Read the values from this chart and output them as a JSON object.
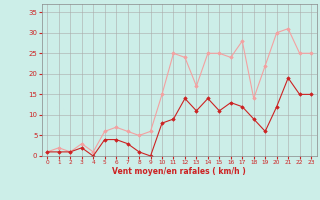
{
  "x": [
    0,
    1,
    2,
    3,
    4,
    5,
    6,
    7,
    8,
    9,
    10,
    11,
    12,
    13,
    14,
    15,
    16,
    17,
    18,
    19,
    20,
    21,
    22,
    23
  ],
  "y_rafales": [
    1,
    2,
    1,
    3,
    1,
    6,
    7,
    6,
    5,
    6,
    15,
    25,
    24,
    17,
    25,
    25,
    24,
    28,
    14,
    22,
    30,
    31,
    25,
    25
  ],
  "y_moyen": [
    1,
    1,
    1,
    2,
    0,
    4,
    4,
    3,
    1,
    0,
    8,
    9,
    14,
    11,
    14,
    11,
    13,
    12,
    9,
    6,
    12,
    19,
    15,
    15
  ],
  "color_rafales": "#f4a0a0",
  "color_moyen": "#cc2222",
  "bg_color": "#cceee8",
  "grid_color": "#aaaaaa",
  "xlabel": "Vent moyen/en rafales ( km/h )",
  "xlabel_color": "#cc2222",
  "tick_color": "#cc2222",
  "ylim": [
    0,
    37
  ],
  "yticks": [
    0,
    5,
    10,
    15,
    20,
    25,
    30,
    35
  ],
  "xlim": [
    -0.5,
    23.5
  ],
  "xticks": [
    0,
    1,
    2,
    3,
    4,
    5,
    6,
    7,
    8,
    9,
    10,
    11,
    12,
    13,
    14,
    15,
    16,
    17,
    18,
    19,
    20,
    21,
    22,
    23
  ]
}
